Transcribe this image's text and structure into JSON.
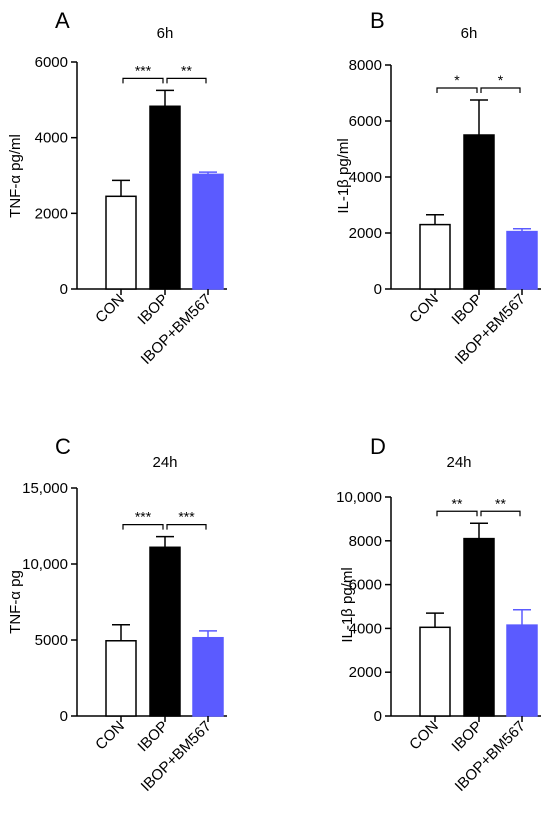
{
  "chart_data": [
    {
      "type": "bar",
      "panel": "A",
      "title": "6h",
      "ylabel": "TNF-α pg/ml",
      "categories": [
        "CON",
        "IBOP",
        "IBOP+BM567"
      ],
      "values": [
        2450,
        4830,
        3030
      ],
      "errors": [
        420,
        420,
        60
      ],
      "colors": [
        "#ffffff",
        "#000000",
        "#5b5bff"
      ],
      "ylim": [
        0,
        6000
      ],
      "yticks": [
        0,
        2000,
        4000,
        6000
      ],
      "ytick_labels": [
        "0",
        "2000",
        "4000",
        "6000"
      ],
      "significance": [
        {
          "from": 0,
          "to": 1,
          "label": "***"
        },
        {
          "from": 1,
          "to": 2,
          "label": "**"
        }
      ]
    },
    {
      "type": "bar",
      "panel": "B",
      "title": "6h",
      "ylabel": "IL-1β pg/ml",
      "categories": [
        "CON",
        "IBOP",
        "IBOP+BM567"
      ],
      "values": [
        2300,
        5500,
        2050
      ],
      "errors": [
        350,
        1250,
        100
      ],
      "colors": [
        "#ffffff",
        "#000000",
        "#5b5bff"
      ],
      "ylim": [
        0,
        8000
      ],
      "yticks": [
        0,
        2000,
        4000,
        6000,
        8000
      ],
      "ytick_labels": [
        "0",
        "2000",
        "4000",
        "6000",
        "8000"
      ],
      "significance": [
        {
          "from": 0,
          "to": 1,
          "label": "*"
        },
        {
          "from": 1,
          "to": 2,
          "label": "*"
        }
      ]
    },
    {
      "type": "bar",
      "panel": "C",
      "title": "24h",
      "ylabel": "TNF-α pg",
      "categories": [
        "CON",
        "IBOP",
        "IBOP+BM567"
      ],
      "values": [
        4950,
        11100,
        5150
      ],
      "errors": [
        1050,
        700,
        450
      ],
      "colors": [
        "#ffffff",
        "#000000",
        "#5b5bff"
      ],
      "ylim": [
        0,
        15000
      ],
      "yticks": [
        0,
        5000,
        10000,
        15000
      ],
      "ytick_labels": [
        "0",
        "5000",
        "10,000",
        "15,000"
      ],
      "significance": [
        {
          "from": 0,
          "to": 1,
          "label": "***"
        },
        {
          "from": 1,
          "to": 2,
          "label": "***"
        }
      ]
    },
    {
      "type": "bar",
      "panel": "D",
      "title": "24h",
      "ylabel": "IL-1β pg/ml",
      "categories": [
        "CON",
        "IBOP",
        "IBOP+BM567"
      ],
      "values": [
        4050,
        8100,
        4150
      ],
      "errors": [
        650,
        700,
        700
      ],
      "colors": [
        "#ffffff",
        "#000000",
        "#5b5bff"
      ],
      "ylim": [
        0,
        10000
      ],
      "yticks": [
        0,
        2000,
        4000,
        6000,
        8000,
        10000
      ],
      "ytick_labels": [
        "0",
        "2000",
        "4000",
        "6000",
        "8000",
        "10,000"
      ],
      "significance": [
        {
          "from": 0,
          "to": 1,
          "label": "**"
        },
        {
          "from": 1,
          "to": 2,
          "label": "**"
        }
      ]
    }
  ]
}
